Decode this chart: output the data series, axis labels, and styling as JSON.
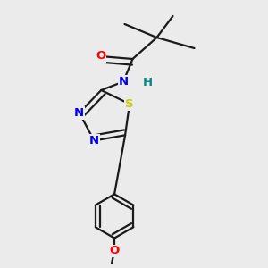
{
  "background_color": "#ebebeb",
  "bond_color": "#1a1a1a",
  "atom_colors": {
    "O": "#ff0000",
    "N": "#0000ee",
    "S": "#cccc00",
    "H": "#008888",
    "C": "#1a1a1a"
  },
  "figsize": [
    3.0,
    3.0
  ],
  "dpi": 100,
  "lw": 1.6,
  "fontsize": 9.5
}
